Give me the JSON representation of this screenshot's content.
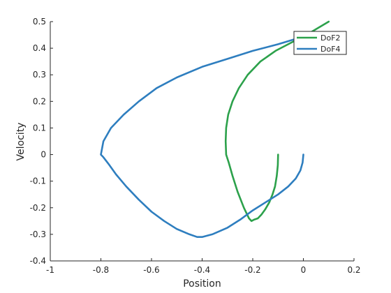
{
  "chart_data": {
    "type": "line",
    "xlabel": "Position",
    "ylabel": "Velocity",
    "xlim": [
      -1,
      0.2
    ],
    "ylim": [
      -0.4,
      0.5
    ],
    "xticks": [
      -1,
      -0.8,
      -0.6,
      -0.4,
      -0.2,
      0,
      0.2
    ],
    "xtick_labels": [
      "-1",
      "-0.8",
      "-0.6",
      "-0.4",
      "-0.2",
      "0",
      "0.2"
    ],
    "yticks": [
      -0.4,
      -0.3,
      -0.2,
      -0.1,
      0,
      0.1,
      0.2,
      0.3,
      0.4,
      0.5
    ],
    "ytick_labels": [
      "-0.4",
      "-0.3",
      "-0.2",
      "-0.1",
      "0",
      "0.1",
      "0.2",
      "0.3",
      "0.4",
      "0.5"
    ],
    "grid": false,
    "legend_position": "top-right",
    "series": [
      {
        "name": "DoF2",
        "color": "#2ca14b",
        "x": [
          -0.1,
          -0.101,
          -0.105,
          -0.112,
          -0.122,
          -0.135,
          -0.15,
          -0.165,
          -0.18,
          -0.195,
          -0.205,
          -0.215,
          -0.235,
          -0.26,
          -0.28,
          -0.295,
          -0.305,
          -0.307,
          -0.305,
          -0.297,
          -0.28,
          -0.255,
          -0.22,
          -0.17,
          -0.11,
          -0.05,
          0.02,
          0.1
        ],
        "y": [
          0.0,
          -0.04,
          -0.08,
          -0.12,
          -0.15,
          -0.18,
          -0.205,
          -0.225,
          -0.24,
          -0.245,
          -0.25,
          -0.24,
          -0.2,
          -0.14,
          -0.08,
          -0.03,
          0.0,
          0.05,
          0.1,
          0.15,
          0.2,
          0.25,
          0.3,
          0.35,
          0.39,
          0.42,
          0.455,
          0.5
        ]
      },
      {
        "name": "DoF4",
        "color": "#2e7ebf",
        "x": [
          0.0,
          -0.003,
          -0.012,
          -0.03,
          -0.06,
          -0.1,
          -0.15,
          -0.2,
          -0.25,
          -0.3,
          -0.36,
          -0.4,
          -0.42,
          -0.45,
          -0.5,
          -0.55,
          -0.6,
          -0.65,
          -0.7,
          -0.74,
          -0.77,
          -0.79,
          -0.8,
          -0.79,
          -0.76,
          -0.71,
          -0.65,
          -0.58,
          -0.5,
          -0.4,
          -0.3,
          -0.2,
          -0.1,
          -0.03,
          0.0,
          0.02
        ],
        "y": [
          0.0,
          -0.03,
          -0.06,
          -0.09,
          -0.12,
          -0.15,
          -0.18,
          -0.21,
          -0.245,
          -0.275,
          -0.3,
          -0.31,
          -0.31,
          -0.3,
          -0.28,
          -0.25,
          -0.215,
          -0.17,
          -0.12,
          -0.075,
          -0.035,
          -0.01,
          0.0,
          0.05,
          0.1,
          0.15,
          0.2,
          0.25,
          0.29,
          0.33,
          0.36,
          0.39,
          0.415,
          0.435,
          0.44,
          0.445
        ]
      }
    ]
  }
}
